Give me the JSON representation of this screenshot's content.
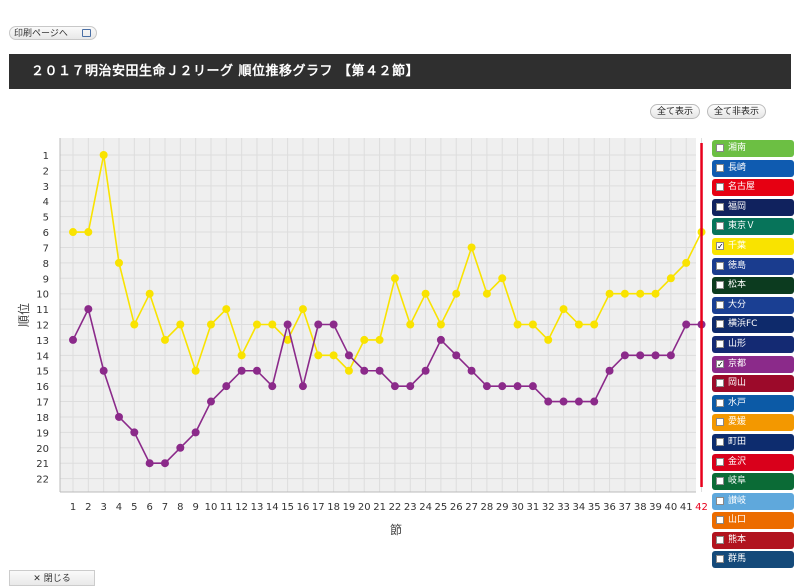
{
  "toolbar": {
    "print_label": "印刷ページへ",
    "close_label": "閉じる"
  },
  "header": {
    "title": "２０１７明治安田生命Ｊ２リーグ 順位推移グラフ 【第４２節】"
  },
  "controls": {
    "show_all": "全て表示",
    "hide_all": "全て非表示"
  },
  "colors": {
    "plot_bg": "#efefef",
    "grid": "#dddddd",
    "current_marker": "#e8001c",
    "current_tick": "#e8001c"
  },
  "legend": [
    {
      "label": "湘南",
      "color": "#6cbf43",
      "checked": false
    },
    {
      "label": "長崎",
      "color": "#0f5bb0",
      "checked": false
    },
    {
      "label": "名古屋",
      "color": "#e60012",
      "checked": false
    },
    {
      "label": "福岡",
      "color": "#10225e",
      "checked": false
    },
    {
      "label": "東京Ｖ",
      "color": "#07745a",
      "checked": false
    },
    {
      "label": "千葉",
      "color": "#f9e300",
      "checked": true
    },
    {
      "label": "徳島",
      "color": "#1a3c8e",
      "checked": false
    },
    {
      "label": "松本",
      "color": "#0c3b1f",
      "checked": false
    },
    {
      "label": "大分",
      "color": "#1a3f93",
      "checked": false
    },
    {
      "label": "横浜FC",
      "color": "#0e2a6b",
      "checked": false
    },
    {
      "label": "山形",
      "color": "#142a73",
      "checked": false
    },
    {
      "label": "京都",
      "color": "#8b2a8a",
      "checked": true
    },
    {
      "label": "岡山",
      "color": "#9c0a2a",
      "checked": false
    },
    {
      "label": "水戸",
      "color": "#0c5aa6",
      "checked": false
    },
    {
      "label": "愛媛",
      "color": "#f39800",
      "checked": false
    },
    {
      "label": "町田",
      "color": "#0d2c6e",
      "checked": false
    },
    {
      "label": "金沢",
      "color": "#d9001b",
      "checked": false
    },
    {
      "label": "岐阜",
      "color": "#0b6b36",
      "checked": false
    },
    {
      "label": "讃岐",
      "color": "#5fa8dc",
      "checked": false
    },
    {
      "label": "山口",
      "color": "#ec6c00",
      "checked": false
    },
    {
      "label": "熊本",
      "color": "#b1141f",
      "checked": false
    },
    {
      "label": "群馬",
      "color": "#154a7a",
      "checked": false
    }
  ],
  "chart_data": {
    "type": "line",
    "ylabel": "順位",
    "xlabel": "節",
    "x": [
      1,
      2,
      3,
      4,
      5,
      6,
      7,
      8,
      9,
      10,
      11,
      12,
      13,
      14,
      15,
      16,
      17,
      18,
      19,
      20,
      21,
      22,
      23,
      24,
      25,
      26,
      27,
      28,
      29,
      30,
      31,
      32,
      33,
      34,
      35,
      36,
      37,
      38,
      39,
      40,
      41,
      42
    ],
    "ylim": [
      1,
      22
    ],
    "y_inverted": true,
    "current_round": 42,
    "series": [
      {
        "name": "千葉",
        "color": "#f9e300",
        "values": [
          6,
          6,
          1,
          8,
          12,
          10,
          13,
          12,
          15,
          12,
          11,
          14,
          12,
          12,
          13,
          11,
          14,
          14,
          15,
          13,
          13,
          9,
          12,
          10,
          12,
          10,
          7,
          10,
          9,
          12,
          12,
          13,
          11,
          12,
          12,
          10,
          10,
          10,
          10,
          9,
          8,
          6
        ]
      },
      {
        "name": "京都",
        "color": "#8b2a8a",
        "values": [
          13,
          11,
          15,
          18,
          19,
          21,
          21,
          20,
          19,
          17,
          16,
          15,
          15,
          16,
          12,
          16,
          12,
          12,
          14,
          15,
          15,
          16,
          16,
          15,
          13,
          14,
          15,
          16,
          16,
          16,
          16,
          17,
          17,
          17,
          17,
          15,
          14,
          14,
          14,
          14,
          12,
          12
        ]
      }
    ]
  }
}
